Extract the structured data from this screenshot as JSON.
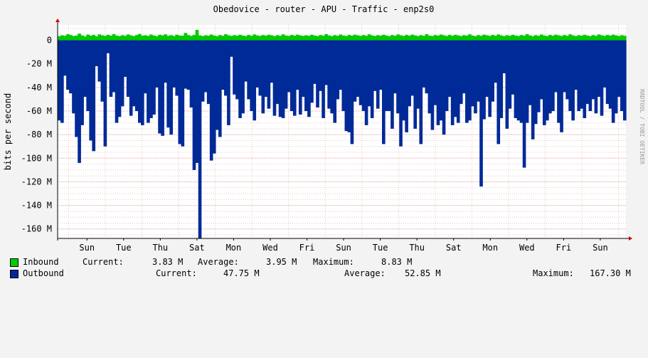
{
  "chart_data": {
    "type": "area",
    "title": "Obedovice - router - APU - Traffic - enp2s0",
    "ylabel": "bits per second",
    "side_label": "RRDTOOL / TOBI OETIKER",
    "ylim": [
      -168000000,
      13000000
    ],
    "y_ticks": [
      {
        "value": 0,
        "label": "0"
      },
      {
        "value": -20000000,
        "label": "-20 M"
      },
      {
        "value": -40000000,
        "label": "-40 M"
      },
      {
        "value": -60000000,
        "label": "-60 M"
      },
      {
        "value": -80000000,
        "label": "-80 M"
      },
      {
        "value": -100000000,
        "label": "-100 M"
      },
      {
        "value": -120000000,
        "label": "-120 M"
      },
      {
        "value": -140000000,
        "label": "-140 M"
      },
      {
        "value": -160000000,
        "label": "-160 M"
      }
    ],
    "x_labels": [
      "Sun",
      "Tue",
      "Thu",
      "Sat",
      "Mon",
      "Wed",
      "Fri",
      "Sun",
      "Tue",
      "Thu",
      "Sat",
      "Mon",
      "Wed",
      "Fri",
      "Sun"
    ],
    "x_range_days": [
      0,
      15.5
    ],
    "x_label_offset_days": 0.8,
    "series": [
      {
        "name": "Inbound",
        "color": "#00cc00",
        "values": [
          3.5,
          4.2,
          3.8,
          5.1,
          4.4,
          3.6,
          4.0,
          5.6,
          4.1,
          3.3,
          4.8,
          3.9,
          4.5,
          3.4,
          5.0,
          4.2,
          3.7,
          4.6,
          3.9,
          5.2,
          4.0,
          3.5,
          4.3,
          3.8,
          4.9,
          4.1,
          3.6,
          4.4,
          5.3,
          3.9,
          4.2,
          3.7,
          4.8,
          4.0,
          3.5,
          4.6,
          4.1,
          5.0,
          3.8,
          4.3,
          3.6,
          4.7,
          4.0,
          3.9,
          6.2,
          4.4,
          3.7,
          4.5,
          8.8,
          4.1,
          3.6,
          4.2,
          3.9,
          4.8,
          4.0,
          3.5,
          4.4,
          3.8,
          5.1,
          4.2,
          3.7,
          4.3,
          3.9,
          4.6,
          4.0,
          3.6,
          4.5,
          3.8,
          4.9,
          4.1,
          3.7,
          4.4,
          3.9,
          4.6,
          4.2,
          3.5,
          4.3,
          3.8,
          5.0,
          4.0,
          3.6,
          4.5,
          3.9,
          4.7,
          4.1,
          3.7,
          4.2,
          3.8,
          4.6,
          4.0,
          3.6,
          4.4,
          3.9,
          5.2,
          4.1,
          3.5,
          4.3,
          3.8,
          4.8,
          4.0,
          3.6,
          4.5,
          3.9,
          4.7,
          4.2,
          3.7,
          4.4,
          3.8,
          5.0,
          4.1,
          3.6,
          4.3,
          3.9,
          4.6,
          4.0,
          3.5,
          4.4,
          3.8,
          4.9,
          4.2,
          3.7,
          4.5,
          3.9,
          4.7,
          4.1,
          3.6,
          4.3,
          3.8,
          5.1,
          4.0,
          3.6,
          4.4,
          3.9,
          4.8,
          4.2,
          3.7,
          4.5,
          3.8,
          4.6,
          4.1,
          3.6,
          4.3,
          3.9,
          5.0,
          4.0,
          3.5,
          4.4,
          3.8,
          4.7,
          4.2,
          3.7,
          4.5,
          3.9,
          4.9,
          4.1,
          3.6,
          4.3,
          3.8,
          4.6,
          4.0,
          3.6,
          4.4,
          3.9,
          5.2,
          4.1,
          3.5,
          4.3,
          3.8,
          4.8,
          4.0,
          3.6,
          4.5,
          3.9,
          4.7,
          4.2,
          3.7,
          4.4,
          3.8,
          5.0,
          4.1,
          3.6,
          4.3,
          3.9,
          4.6,
          4.0,
          3.5,
          4.4,
          3.8,
          4.9,
          4.2,
          3.7,
          4.5,
          3.9,
          4.7,
          4.1,
          3.6,
          4.3,
          3.8
        ]
      },
      {
        "name": "Outbound",
        "color": "#002a97",
        "values": [
          -68,
          -70,
          -30,
          -42,
          -45,
          -62,
          -82,
          -104,
          -72,
          -48,
          -60,
          -85,
          -94,
          -22,
          -35,
          -52,
          -90,
          -11,
          -48,
          -44,
          -70,
          -65,
          -56,
          -31,
          -48,
          -64,
          -56,
          -60,
          -70,
          -72,
          -45,
          -70,
          -66,
          -63,
          -40,
          -79,
          -81,
          -36,
          -74,
          -80,
          -40,
          -47,
          -88,
          -90,
          -41,
          -42,
          -57,
          -110,
          -104,
          -168,
          -52,
          -44,
          -54,
          -102,
          -96,
          -76,
          -82,
          -42,
          -47,
          -72,
          -14,
          -46,
          -50,
          -66,
          -62,
          -35,
          -50,
          -60,
          -68,
          -40,
          -47,
          -62,
          -48,
          -58,
          -36,
          -64,
          -54,
          -65,
          -66,
          -58,
          -44,
          -60,
          -64,
          -42,
          -63,
          -48,
          -60,
          -65,
          -53,
          -37,
          -57,
          -43,
          -66,
          -38,
          -58,
          -62,
          -70,
          -50,
          -42,
          -60,
          -77,
          -78,
          -88,
          -52,
          -48,
          -55,
          -60,
          -72,
          -56,
          -66,
          -43,
          -58,
          -42,
          -88,
          -60,
          -60,
          -75,
          -45,
          -62,
          -90,
          -68,
          -78,
          -56,
          -47,
          -75,
          -58,
          -88,
          -40,
          -45,
          -62,
          -76,
          -55,
          -72,
          -68,
          -80,
          -60,
          -48,
          -72,
          -65,
          -70,
          -54,
          -45,
          -70,
          -68,
          -56,
          -62,
          -52,
          -124,
          -67,
          -48,
          -65,
          -52,
          -36,
          -88,
          -66,
          -28,
          -75,
          -58,
          -46,
          -66,
          -68,
          -70,
          -108,
          -70,
          -55,
          -84,
          -71,
          -61,
          -50,
          -72,
          -68,
          -62,
          -60,
          -44,
          -70,
          -78,
          -44,
          -50,
          -60,
          -68,
          -42,
          -60,
          -58,
          -66,
          -54,
          -60,
          -50,
          -62,
          -48,
          -64,
          -40,
          -54,
          -58,
          -70,
          -62,
          -48,
          -60,
          -68
        ]
      }
    ]
  },
  "legend": [
    {
      "name": "Inbound",
      "color": "#00cc00",
      "current_label": "Current:",
      "current": "3.83 M",
      "average_label": "Average:",
      "average": "3.95 M",
      "maximum_label": "Maximum:",
      "maximum": "8.83 M"
    },
    {
      "name": "Outbound",
      "color": "#002a97",
      "current_label": "Current:",
      "current": "47.75 M",
      "average_label": "Average:",
      "average": "52.85 M",
      "maximum_label": "Maximum:",
      "maximum": "167.30 M"
    }
  ]
}
